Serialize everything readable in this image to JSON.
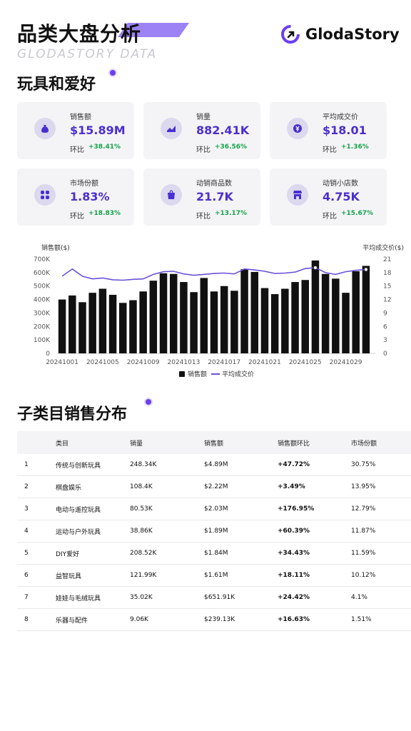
{
  "header": {
    "title": "品类大盘分析",
    "subtitle": "GLODASTORY DATA",
    "logo_text": "GlodaStory",
    "category": "玩具和爱好"
  },
  "colors": {
    "accent": "#4a2fd0",
    "positive": "#16a34a",
    "bar": "#111111",
    "line": "#6c52d9"
  },
  "kpis": [
    {
      "label": "销售额",
      "value": "$15.89M",
      "change_label": "环比",
      "change": "+38.41%",
      "icon": "money-bag-icon"
    },
    {
      "label": "销量",
      "value": "882.41K",
      "change_label": "环比",
      "change": "+36.56%",
      "icon": "trend-chart-icon"
    },
    {
      "label": "平均成交价",
      "value": "$18.01",
      "change_label": "环比",
      "change": "+1.36%",
      "icon": "price-tag-icon"
    },
    {
      "label": "市场份额",
      "value": "1.83%",
      "change_label": "环比",
      "change": "+18.83%",
      "icon": "share-grid-icon"
    },
    {
      "label": "动销商品数",
      "value": "21.7K",
      "change_label": "环比",
      "change": "+13.17%",
      "icon": "shopping-bag-icon"
    },
    {
      "label": "动销小店数",
      "value": "4.75K",
      "change_label": "环比",
      "change": "+15.67%",
      "icon": "store-icon"
    }
  ],
  "chart_data": {
    "type": "bar",
    "title": "",
    "ylabel": "销售额($)",
    "y2label": "平均成交价($)",
    "ylim": [
      0,
      700000
    ],
    "y2lim": [
      0,
      21
    ],
    "yticks": [
      "0",
      "100K",
      "200K",
      "300K",
      "400K",
      "500K",
      "600K",
      "700K"
    ],
    "y2ticks": [
      "0",
      "3",
      "6",
      "9",
      "12",
      "15",
      "18",
      "21"
    ],
    "x_tick_labels": [
      "20241001",
      "20241005",
      "20241009",
      "20241013",
      "20241017",
      "20241021",
      "20241025",
      "20241029"
    ],
    "categories": [
      "20241001",
      "20241002",
      "20241003",
      "20241004",
      "20241005",
      "20241006",
      "20241007",
      "20241008",
      "20241009",
      "20241010",
      "20241011",
      "20241012",
      "20241013",
      "20241014",
      "20241015",
      "20241016",
      "20241017",
      "20241018",
      "20241019",
      "20241020",
      "20241021",
      "20241022",
      "20241023",
      "20241024",
      "20241025",
      "20241026",
      "20241027",
      "20241028",
      "20241029",
      "20241030",
      "20241031"
    ],
    "series": [
      {
        "name": "销售额",
        "type": "bar",
        "values": [
          400000,
          430000,
          380000,
          450000,
          480000,
          435000,
          375000,
          395000,
          460000,
          540000,
          595000,
          590000,
          530000,
          455000,
          560000,
          460000,
          500000,
          465000,
          625000,
          605000,
          485000,
          440000,
          480000,
          530000,
          545000,
          690000,
          590000,
          555000,
          450000,
          610000,
          650000
        ]
      },
      {
        "name": "平均成交价",
        "type": "line",
        "axis": "right",
        "values": [
          17.2,
          18.8,
          17.2,
          16.6,
          16.8,
          16.4,
          16.3,
          16.5,
          16.6,
          17.6,
          18.2,
          18.3,
          17.7,
          17.4,
          17.6,
          17.8,
          17.9,
          17.7,
          18.8,
          18.6,
          18.3,
          17.8,
          17.9,
          18.1,
          18.9,
          19.1,
          18.0,
          17.6,
          18.2,
          18.5,
          18.7
        ]
      }
    ],
    "legend_placement": "bottom-center",
    "grid": false
  },
  "subcategory": {
    "title": "子类目销售分布",
    "columns": [
      "类目",
      "销量",
      "销售额",
      "销售额环比",
      "市场份额"
    ],
    "rows": [
      {
        "rank": "1",
        "name": "传统与创新玩具",
        "volume": "248.34K",
        "sales": "$4.89M",
        "change": "+47.72%",
        "share": "30.75%"
      },
      {
        "rank": "2",
        "name": "棋盘娱乐",
        "volume": "108.4K",
        "sales": "$2.22M",
        "change": "+3.49%",
        "share": "13.95%"
      },
      {
        "rank": "3",
        "name": "电动与遥控玩具",
        "volume": "80.53K",
        "sales": "$2.03M",
        "change": "+176.95%",
        "share": "12.79%"
      },
      {
        "rank": "4",
        "name": "运动与户外玩具",
        "volume": "38.86K",
        "sales": "$1.89M",
        "change": "+60.39%",
        "share": "11.87%"
      },
      {
        "rank": "5",
        "name": "DIY爱好",
        "volume": "208.52K",
        "sales": "$1.84M",
        "change": "+34.43%",
        "share": "11.59%"
      },
      {
        "rank": "6",
        "name": "益智玩具",
        "volume": "121.99K",
        "sales": "$1.61M",
        "change": "+18.11%",
        "share": "10.12%"
      },
      {
        "rank": "7",
        "name": "娃娃与毛绒玩具",
        "volume": "35.02K",
        "sales": "$651.91K",
        "change": "+24.42%",
        "share": "4.1%"
      },
      {
        "rank": "8",
        "name": "乐器与配件",
        "volume": "9.06K",
        "sales": "$239.13K",
        "change": "+16.63%",
        "share": "1.51%"
      }
    ]
  }
}
